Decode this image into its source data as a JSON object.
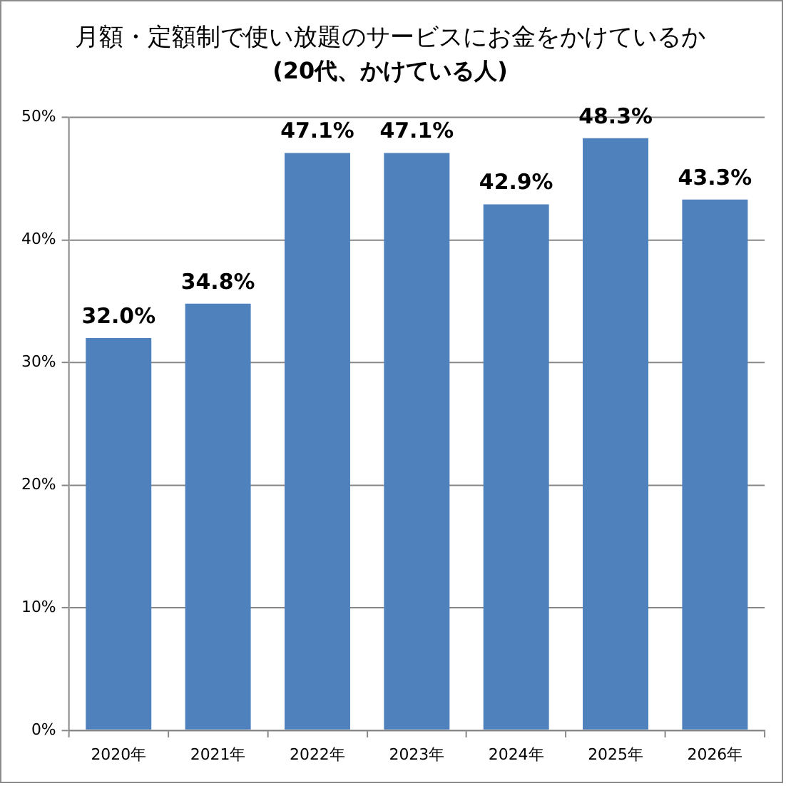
{
  "chart_data": {
    "type": "bar",
    "title": "月額・定額制で使い放題のサービスにお金をかけているか",
    "subtitle": "(20代、かけている人)",
    "categories": [
      "2020年",
      "2021年",
      "2022年",
      "2023年",
      "2024年",
      "2025年",
      "2026年"
    ],
    "values": [
      32.0,
      34.8,
      47.1,
      47.1,
      42.9,
      48.3,
      43.3
    ],
    "value_labels": [
      "32.0%",
      "34.8%",
      "47.1%",
      "47.1%",
      "42.9%",
      "48.3%",
      "43.3%"
    ],
    "color": "#4f81bd",
    "ylim": [
      0,
      50
    ],
    "yticks": [
      {
        "value": 0,
        "label": "0%"
      },
      {
        "value": 10,
        "label": "10%"
      },
      {
        "value": 20,
        "label": "20%"
      },
      {
        "value": 30,
        "label": "30%"
      },
      {
        "value": 40,
        "label": "40%"
      },
      {
        "value": 50,
        "label": "50%"
      }
    ],
    "grid": "y"
  }
}
